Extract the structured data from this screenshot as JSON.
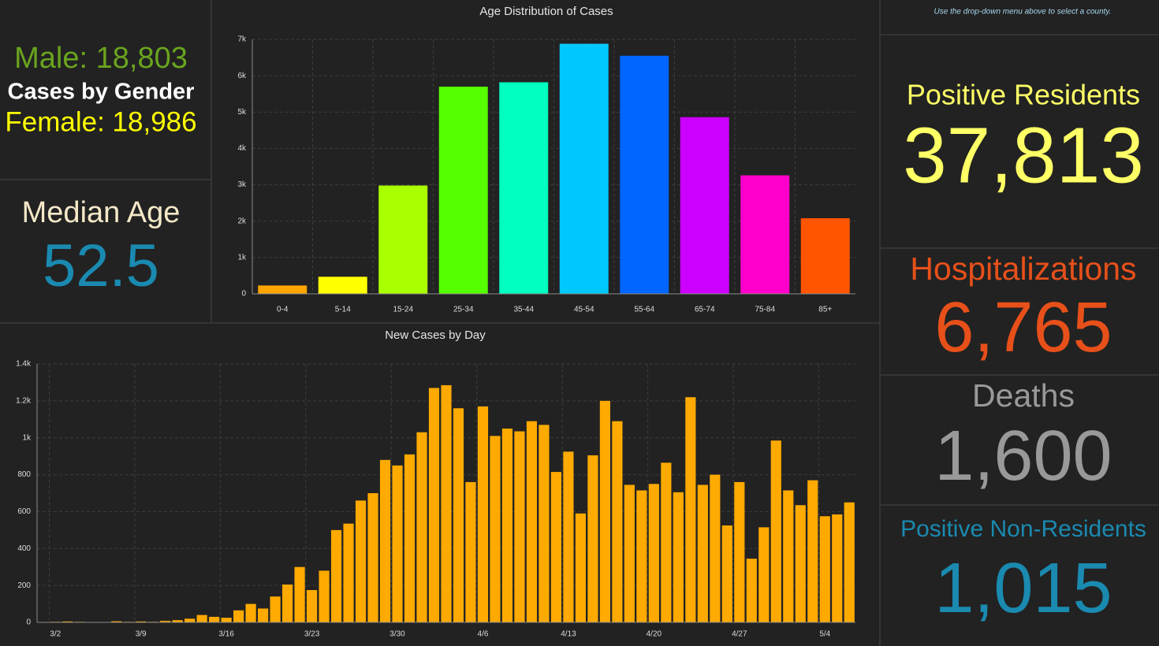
{
  "gender": {
    "male": "Male: 18,803",
    "title": "Cases by Gender",
    "female": "Female: 18,986"
  },
  "median_age": {
    "label": "Median Age",
    "value": "52.5"
  },
  "note": "Use the drop-down menu above to select a county.",
  "indicators": [
    {
      "label": "Positive Residents",
      "value": "37,813",
      "color": "#ffff66"
    },
    {
      "label": "Hospitalizations",
      "value": "6,765",
      "color": "#e8501a"
    },
    {
      "label": "Deaths",
      "value": "1,600",
      "color": "#999999"
    },
    {
      "label": "Positive Non-Residents",
      "value": "1,015",
      "color": "#1a8ab0"
    }
  ],
  "chart_data": [
    {
      "type": "bar",
      "title": "Age Distribution of Cases",
      "categories": [
        "0-4",
        "5-14",
        "15-24",
        "25-34",
        "35-44",
        "45-54",
        "55-64",
        "65-74",
        "75-84",
        "85+"
      ],
      "values": [
        230,
        470,
        2980,
        5700,
        5820,
        6880,
        6550,
        4860,
        3260,
        2080
      ],
      "colors": [
        "#ffa500",
        "#ffff00",
        "#aaff00",
        "#55ff00",
        "#00ffc0",
        "#00c8ff",
        "#0066ff",
        "#cc00ff",
        "#ff00cc",
        "#ff5500"
      ],
      "ylim": [
        0,
        7000
      ],
      "yticks": [
        0,
        {
          "value": 1000,
          "label": "1k"
        },
        {
          "value": 2000,
          "label": "2k"
        },
        {
          "value": 3000,
          "label": "3k"
        },
        {
          "value": 4000,
          "label": "4k"
        },
        {
          "value": 5000,
          "label": "5k"
        },
        {
          "value": 6000,
          "label": "6k"
        },
        {
          "value": 7000,
          "label": "7k"
        }
      ],
      "grid": true
    },
    {
      "type": "bar",
      "title": "New Cases by Day",
      "categories": [
        null,
        "3/2",
        null,
        null,
        null,
        null,
        null,
        null,
        "3/9",
        null,
        null,
        null,
        null,
        null,
        null,
        "3/16",
        null,
        null,
        null,
        null,
        null,
        null,
        "3/23",
        null,
        null,
        null,
        null,
        null,
        null,
        "3/30",
        null,
        null,
        null,
        null,
        null,
        null,
        "4/6",
        null,
        null,
        null,
        null,
        null,
        null,
        "4/13",
        null,
        null,
        null,
        null,
        null,
        null,
        "4/20",
        null,
        null,
        null,
        null,
        null,
        null,
        "4/27",
        null,
        null,
        null,
        null,
        null,
        null,
        "5/4",
        null,
        null
      ],
      "values": [
        2,
        3,
        5,
        3,
        2,
        0,
        6,
        3,
        5,
        3,
        8,
        12,
        20,
        40,
        30,
        25,
        65,
        100,
        75,
        140,
        205,
        300,
        175,
        280,
        500,
        535,
        660,
        700,
        880,
        850,
        910,
        1030,
        1270,
        1285,
        1160,
        760,
        1170,
        1010,
        1050,
        1035,
        1090,
        1070,
        815,
        925,
        590,
        905,
        1200,
        1090,
        745,
        715,
        750,
        865,
        705,
        1220,
        745,
        800,
        525,
        760,
        345,
        515,
        985,
        715,
        635,
        770,
        575,
        585,
        650
      ],
      "color": "#ffaa00",
      "ylim": [
        0,
        1400
      ],
      "yticks": [
        0,
        200,
        400,
        600,
        800,
        {
          "value": 1000,
          "label": "1k"
        },
        {
          "value": 1200,
          "label": "1.2k"
        },
        {
          "value": 1400,
          "label": "1.4k"
        }
      ],
      "grid": true
    }
  ]
}
